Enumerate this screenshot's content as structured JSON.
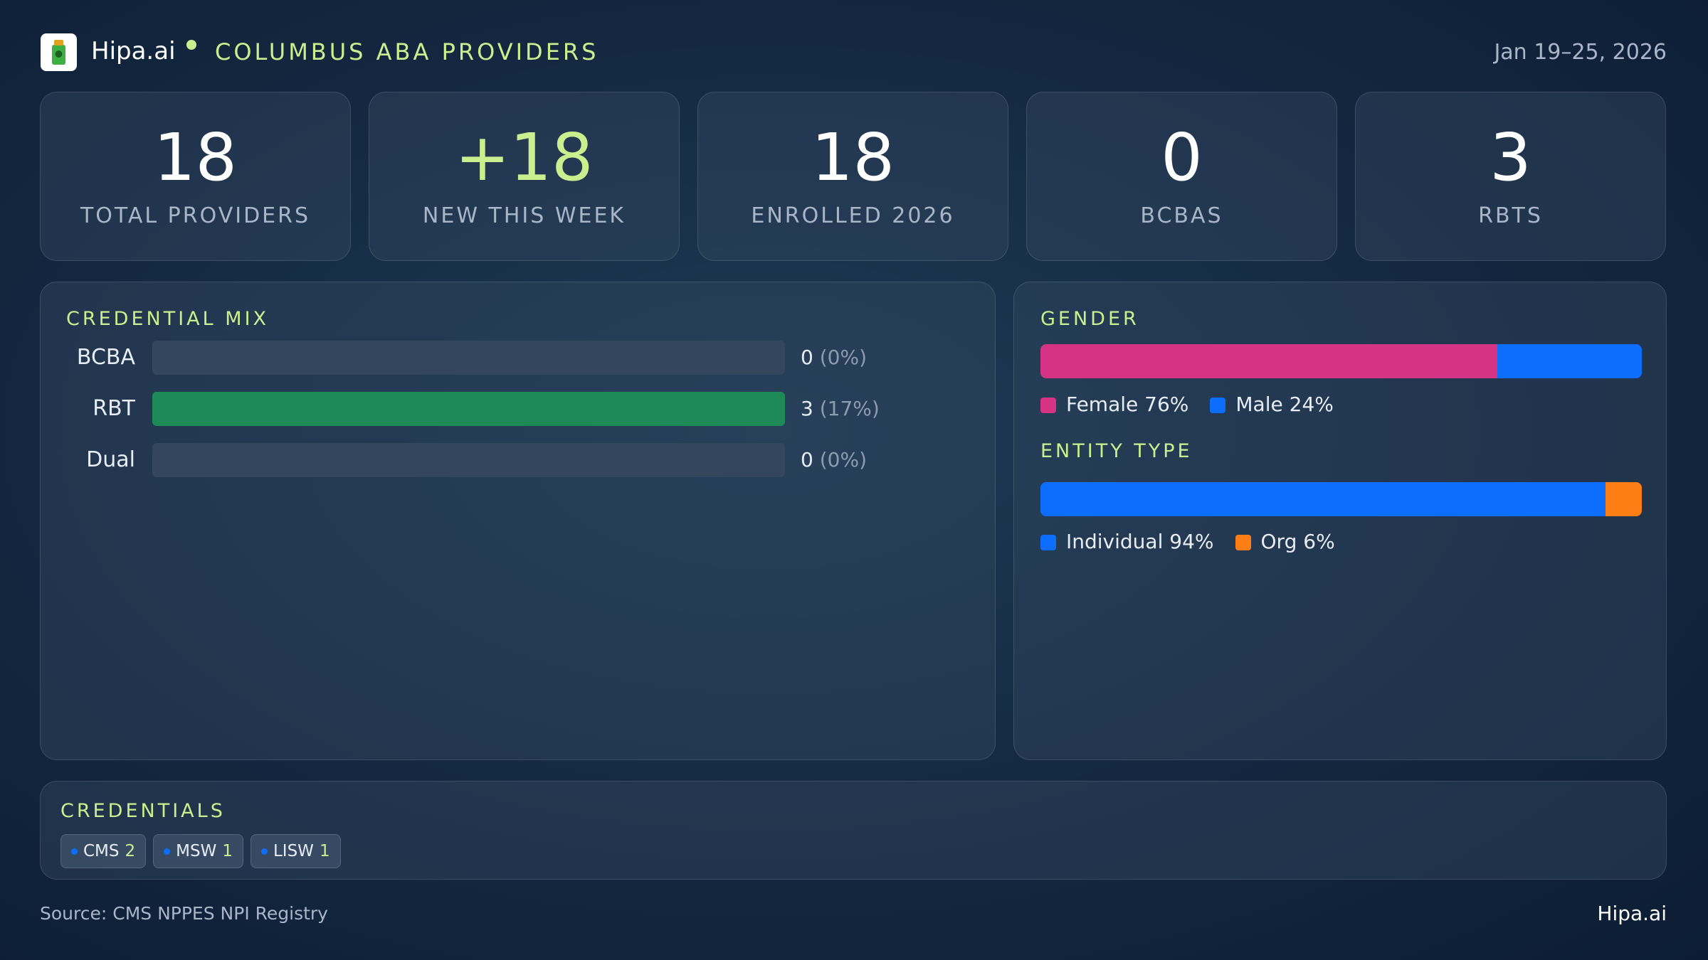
{
  "header": {
    "brand": "Hipa.ai",
    "title": "COLUMBUS ABA PROVIDERS",
    "date": "Jan 19–25, 2026"
  },
  "kpis": [
    {
      "value": 18,
      "label": "TOTAL PROVIDERS"
    },
    {
      "value": "+18",
      "label": "NEW THIS WEEK"
    },
    {
      "value": 18,
      "label": "ENROLLED 2026"
    },
    {
      "value": 0,
      "label": "BCBAS"
    },
    {
      "value": 3,
      "label": "RBTS"
    }
  ],
  "credential_mix": {
    "title": "CREDENTIAL MIX",
    "color": "#1e8a57",
    "rows": [
      {
        "label": "BCBA",
        "value": 0,
        "percent": "(0%)"
      },
      {
        "label": "RBT",
        "value": 3,
        "percent": "(17%)"
      },
      {
        "label": "Dual",
        "value": 0,
        "percent": "(0%)"
      }
    ]
  },
  "gender": {
    "title": "GENDER",
    "segments": [
      {
        "name": "Female",
        "value": 76,
        "label": "76%",
        "color": "#d63384"
      },
      {
        "name": "Male",
        "value": 24,
        "label": "24%",
        "color": "#0d6efd"
      }
    ]
  },
  "entity_type": {
    "title": "ENTITY TYPE",
    "segments": [
      {
        "name": "Individual",
        "value": 94,
        "label": "94%",
        "color": "#0d6efd"
      },
      {
        "name": "Org",
        "value": 6,
        "label": "6%",
        "color": "#fd7e14"
      }
    ]
  },
  "credentials": {
    "title": "CREDENTIALS",
    "chips": [
      {
        "name": "CMS",
        "count": 2
      },
      {
        "name": "MSW",
        "count": 1
      },
      {
        "name": "LISW",
        "count": 1
      }
    ]
  },
  "footer": {
    "source": "Source: CMS NPPES NPI Registry",
    "brand": "Hipa.ai"
  }
}
